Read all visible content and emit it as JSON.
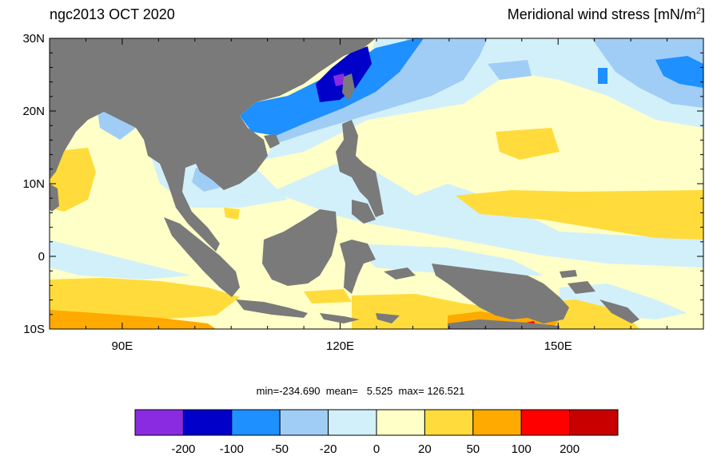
{
  "title_left": "ngc2013 OCT 2020",
  "title_right_main": "Meridional wind stress [mN/m",
  "title_right_sup": "2",
  "title_right_end": "]",
  "lat_ticks": [
    {
      "label": "30N",
      "value": 30
    },
    {
      "label": "20N",
      "value": 20
    },
    {
      "label": "10N",
      "value": 10
    },
    {
      "label": "0",
      "value": 0
    },
    {
      "label": "10S",
      "value": -10
    }
  ],
  "lon_ticks": [
    {
      "label": "90E",
      "value": 90
    },
    {
      "label": "120E",
      "value": 120
    },
    {
      "label": "150E",
      "value": 150
    }
  ],
  "stats": {
    "min_label": "min=",
    "min": "-234.690",
    "mean_label": "mean=",
    "mean": "5.525",
    "max_label": "max=",
    "max": "126.521"
  },
  "colorbar": {
    "colors": [
      "#8a2be2",
      "#0000c8",
      "#1e90ff",
      "#a0cdf5",
      "#d2f0fa",
      "#ffffc8",
      "#ffdc3c",
      "#ffaa00",
      "#ff0000",
      "#c80000"
    ],
    "labels": [
      "-200",
      "-100",
      "-50",
      "-20",
      "0",
      "20",
      "50",
      "100",
      "200"
    ]
  },
  "colors": {
    "land": "#7a7a7a",
    "ocean_base": "#ffffc8"
  }
}
